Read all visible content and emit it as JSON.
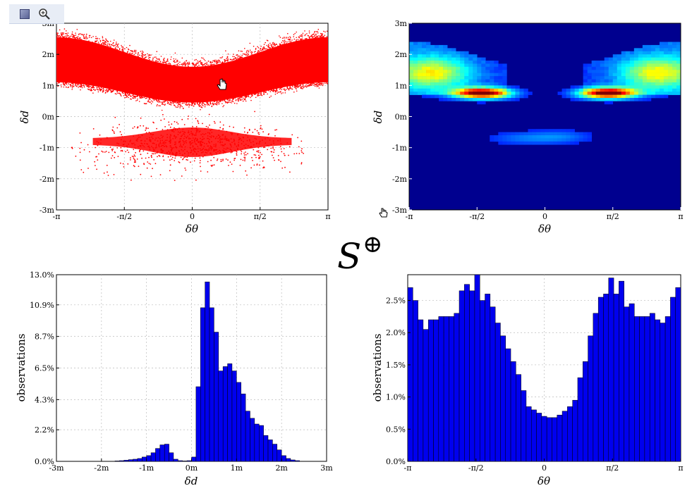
{
  "toolbar": {
    "buttons": [
      {
        "icon": "select-rect-icon"
      },
      {
        "icon": "zoom-icon"
      }
    ]
  },
  "center_symbol": {
    "letter": "S",
    "operator": "⊕"
  },
  "chart_data": [
    {
      "type": "scatter",
      "color": "#ff0000",
      "xlabel": "δθ",
      "ylabel": "δd",
      "xlim": [
        -3.1416,
        3.1416
      ],
      "ylim": [
        -3,
        3
      ],
      "x_ticks": [
        -3.1416,
        -1.5708,
        0,
        1.5708,
        3.1416
      ],
      "x_tick_labels": [
        "-π",
        "-π/2",
        "0",
        "π/2",
        "π"
      ],
      "y_ticks": [
        -3,
        -2,
        -1,
        0,
        1,
        2,
        3
      ],
      "y_tick_labels": [
        "-3m",
        "-2m",
        "-1m",
        "0m",
        "1m",
        "2m",
        "3m"
      ],
      "grid": true,
      "clusters": [
        {
          "name": "upper",
          "x_range": [
            -3.1416,
            3.1416
          ],
          "y_lower_center": 0.45,
          "y_lower_edge": 1.1,
          "y_upper_center": 1.6,
          "y_upper_edge": 2.55
        },
        {
          "name": "lower",
          "x_range": [
            -2.7,
            2.7
          ],
          "y_top_center": -0.35,
          "y_top_edge": -0.7,
          "y_bottom_center": -1.3,
          "y_bottom_edge": -0.9
        }
      ]
    },
    {
      "type": "heatmap",
      "colormap": "jet",
      "xlabel": "δθ",
      "ylabel": "δd",
      "xlim": [
        -3.1416,
        3.1416
      ],
      "ylim": [
        -3,
        3
      ],
      "x_ticks": [
        -3.1416,
        -1.5708,
        0,
        1.5708,
        3.1416
      ],
      "x_tick_labels": [
        "-π",
        "-π/2",
        "0",
        "π/2",
        "π"
      ],
      "y_ticks": [
        -3,
        -2,
        -1,
        0,
        1,
        2,
        3
      ],
      "y_tick_labels": [
        "-3m",
        "-2m",
        "-1m",
        "0m",
        "1m",
        "2m",
        "3m"
      ],
      "hotspots": [
        {
          "x": -1.45,
          "y": 0.75,
          "intensity": 1.0,
          "sx": 0.45,
          "sy": 0.12
        },
        {
          "x": 1.45,
          "y": 0.75,
          "intensity": 1.0,
          "sx": 0.45,
          "sy": 0.12
        },
        {
          "x": -2.6,
          "y": 1.4,
          "intensity": 0.45,
          "sx": 0.6,
          "sy": 0.35
        },
        {
          "x": 2.6,
          "y": 1.4,
          "intensity": 0.45,
          "sx": 0.6,
          "sy": 0.35
        },
        {
          "x": -0.5,
          "y": -0.7,
          "intensity": 0.12,
          "sx": 0.6,
          "sy": 0.15
        },
        {
          "x": 0.4,
          "y": -0.65,
          "intensity": 0.12,
          "sx": 0.5,
          "sy": 0.15
        }
      ]
    },
    {
      "type": "bar",
      "color": "#0000ee",
      "xlabel": "δd",
      "ylabel": "observations",
      "xlim": [
        -3,
        3
      ],
      "ylim": [
        0,
        13.0
      ],
      "x_ticks": [
        -3,
        -2,
        -1,
        0,
        1,
        2,
        3
      ],
      "x_tick_labels": [
        "-3m",
        "-2m",
        "-1m",
        "0m",
        "1m",
        "2m",
        "3m"
      ],
      "y_ticks": [
        0,
        2.2,
        4.3,
        6.5,
        8.7,
        10.9,
        13.0
      ],
      "y_tick_labels": [
        "0.0%",
        "2.2%",
        "4.3%",
        "6.5%",
        "8.7%",
        "10.9%",
        "13.0%"
      ],
      "bin_start": -3,
      "bin_width": 0.1,
      "values": [
        0,
        0,
        0,
        0,
        0,
        0,
        0,
        0,
        0,
        0,
        0,
        0,
        0,
        0.03,
        0.05,
        0.08,
        0.12,
        0.15,
        0.2,
        0.3,
        0.4,
        0.6,
        0.9,
        1.15,
        1.2,
        0.6,
        0.15,
        0.05,
        0.03,
        0.05,
        0.3,
        5.2,
        10.7,
        12.5,
        10.7,
        9.0,
        6.3,
        6.6,
        6.8,
        6.3,
        5.5,
        4.7,
        3.5,
        3.0,
        2.6,
        2.5,
        1.8,
        1.5,
        1.2,
        0.8,
        0.4,
        0.2,
        0.1,
        0.05,
        0,
        0,
        0,
        0,
        0,
        0
      ]
    },
    {
      "type": "bar",
      "color": "#0000ee",
      "xlabel": "δθ",
      "ylabel": "observations",
      "xlim": [
        -3.1416,
        3.1416
      ],
      "ylim": [
        0,
        2.9
      ],
      "x_ticks": [
        -3.1416,
        -1.5708,
        0,
        1.5708,
        3.1416
      ],
      "x_tick_labels": [
        "-π",
        "-π/2",
        "0",
        "π/2",
        "π"
      ],
      "y_ticks": [
        0,
        0.5,
        1.0,
        1.5,
        2.0,
        2.5
      ],
      "y_tick_labels": [
        "0.0%",
        "0.5%",
        "1.0%",
        "1.5%",
        "2.0%",
        "2.5%"
      ],
      "values": [
        2.7,
        2.5,
        2.2,
        2.05,
        2.2,
        2.2,
        2.25,
        2.25,
        2.25,
        2.3,
        2.65,
        2.75,
        2.65,
        2.9,
        2.5,
        2.6,
        2.4,
        2.15,
        1.95,
        1.75,
        1.55,
        1.35,
        1.1,
        0.85,
        0.8,
        0.75,
        0.7,
        0.68,
        0.68,
        0.72,
        0.78,
        0.85,
        0.95,
        1.3,
        1.55,
        1.95,
        2.3,
        2.55,
        2.6,
        2.85,
        2.6,
        2.8,
        2.4,
        2.45,
        2.25,
        2.25,
        2.25,
        2.3,
        2.2,
        2.15,
        2.25,
        2.55,
        2.7
      ]
    }
  ]
}
